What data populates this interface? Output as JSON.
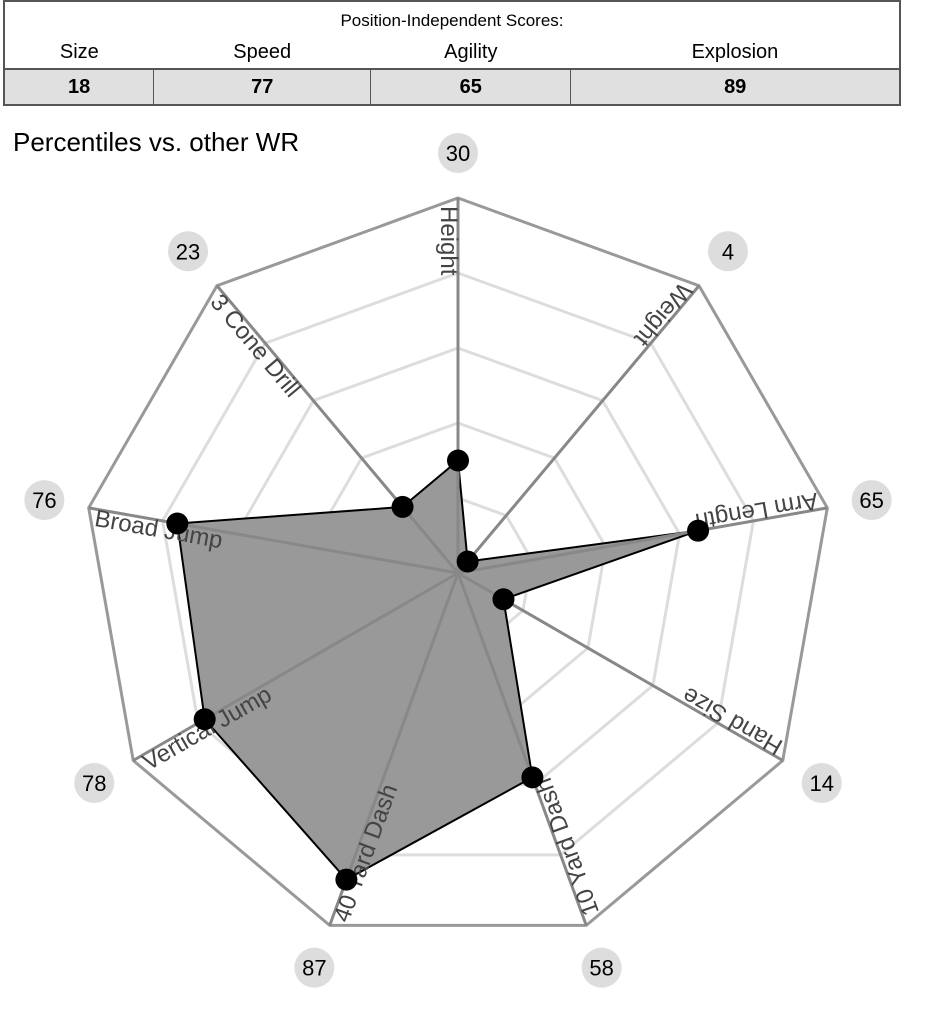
{
  "scores_table": {
    "caption": "Position-Independent Scores:",
    "headers": [
      "Size",
      "Speed",
      "Agility",
      "Explosion"
    ],
    "values": [
      "18",
      "77",
      "65",
      "89"
    ]
  },
  "chart": {
    "title": "Percentiles vs. other WR"
  },
  "chart_data": {
    "type": "radar",
    "title": "Percentiles vs. other WR",
    "categories": [
      "Height",
      "Weight",
      "Arm Length",
      "Hand Size",
      "10 Yard Dash",
      "40 Yard Dash",
      "Vertical Jump",
      "Broad Jump",
      "3 Cone Drill"
    ],
    "values": [
      30,
      4,
      65,
      14,
      58,
      87,
      78,
      76,
      23
    ],
    "range": [
      0,
      100
    ],
    "grid_levels": [
      20,
      40,
      60,
      80,
      100
    ],
    "colors": {
      "fill": "#999999",
      "stroke": "#000000",
      "point": "#000000",
      "outer_grid": "#999999",
      "inner_grid": "#dddddd",
      "badge": "#dddddd"
    }
  }
}
